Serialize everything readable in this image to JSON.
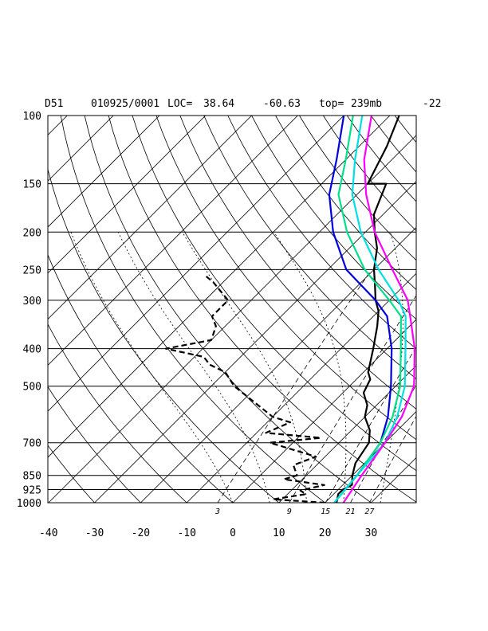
{
  "header": {
    "station": "D51",
    "datetime": "010925/0001",
    "loc_label": "LOC=",
    "lat": "38.64",
    "lon": "-60.63",
    "top_label": "top=",
    "top_value": "239mb",
    "extra": "-22"
  },
  "chart_data": {
    "type": "skew-t log-p sounding",
    "title": "D51   010925/0001 LOC= 38.64   -60.63  top= 239mb    -22",
    "pressure_ticks": [
      "100",
      "150",
      "200",
      "250",
      "300",
      "400",
      "500",
      "700",
      "850",
      "925",
      "1000"
    ],
    "pressure_levels": [
      100,
      150,
      200,
      250,
      300,
      400,
      500,
      700,
      850,
      925,
      1000
    ],
    "temperature_ticks": [
      "-40",
      "-30",
      "-20",
      "-10",
      "0",
      "10",
      "20",
      "30"
    ],
    "temperature_levels": [
      -40,
      -30,
      -20,
      -10,
      0,
      10,
      20,
      30
    ],
    "mixing_ratio_labels": [
      "3",
      "9",
      "15",
      "21",
      "27"
    ],
    "mixing_ratio_values": [
      3,
      9,
      15,
      21,
      27
    ],
    "ylim_hPa": [
      1000,
      100
    ],
    "y_scale": "log",
    "grid": true,
    "skew": "isotherms slope up to the right (about 45 degrees)",
    "series": [
      {
        "style": "solid",
        "color": "#000000",
        "points": [
          [
            22.5,
            1000
          ],
          [
            21,
            950
          ],
          [
            21,
            925
          ],
          [
            22,
            900
          ],
          [
            20,
            850
          ],
          [
            18,
            790
          ],
          [
            16.5,
            700
          ],
          [
            14,
            650
          ],
          [
            10,
            600
          ],
          [
            8,
            560
          ],
          [
            4.5,
            520
          ],
          [
            3,
            480
          ],
          [
            1,
            460
          ],
          [
            -3,
            400
          ],
          [
            -7,
            350
          ],
          [
            -10,
            320
          ],
          [
            -13,
            300
          ],
          [
            -17,
            270
          ],
          [
            -20,
            250
          ],
          [
            -24,
            220
          ],
          [
            -28,
            200
          ],
          [
            -32,
            180
          ],
          [
            -36,
            150
          ],
          [
            -40,
            150
          ],
          [
            -44,
            120
          ],
          [
            -48,
            100
          ]
        ]
      },
      {
        "style": "dashed",
        "color": "#000000",
        "points": [
          [
            20,
            1000
          ],
          [
            8,
            980
          ],
          [
            14,
            950
          ],
          [
            12,
            930
          ],
          [
            16,
            900
          ],
          [
            6,
            870
          ],
          [
            8,
            850
          ],
          [
            5,
            800
          ],
          [
            8,
            760
          ],
          [
            -5,
            700
          ],
          [
            5,
            680
          ],
          [
            -8,
            660
          ],
          [
            -5,
            620
          ],
          [
            -10,
            600
          ],
          [
            -25,
            500
          ],
          [
            -30,
            460
          ],
          [
            -35,
            440
          ],
          [
            -38,
            420
          ],
          [
            -48,
            400
          ],
          [
            -40,
            380
          ],
          [
            -42,
            350
          ],
          [
            -45,
            330
          ],
          [
            -45,
            300
          ],
          [
            -52,
            270
          ],
          [
            -55,
            260
          ]
        ]
      },
      {
        "style": "solid",
        "color": "#0000dd",
        "points": [
          [
            22,
            1000
          ],
          [
            21,
            850
          ],
          [
            19,
            700
          ],
          [
            15,
            600
          ],
          [
            9,
            500
          ],
          [
            1,
            400
          ],
          [
            -7,
            330
          ],
          [
            -13,
            300
          ],
          [
            -26,
            250
          ],
          [
            -37,
            200
          ],
          [
            -46,
            160
          ],
          [
            -52,
            130
          ],
          [
            -60,
            100
          ]
        ]
      },
      {
        "style": "solid",
        "color": "#00e08a",
        "points": [
          [
            22,
            1000
          ],
          [
            21,
            850
          ],
          [
            19,
            700
          ],
          [
            16,
            600
          ],
          [
            11,
            500
          ],
          [
            3,
            400
          ],
          [
            -4,
            330
          ],
          [
            -10,
            300
          ],
          [
            -22,
            250
          ],
          [
            -34,
            200
          ],
          [
            -44,
            160
          ],
          [
            -50,
            130
          ],
          [
            -58,
            100
          ]
        ]
      },
      {
        "style": "solid",
        "color": "#00e0e0",
        "points": [
          [
            22,
            1000
          ],
          [
            21,
            850
          ],
          [
            20,
            700
          ],
          [
            17,
            600
          ],
          [
            12,
            500
          ],
          [
            4,
            400
          ],
          [
            -3,
            330
          ],
          [
            -8,
            300
          ],
          [
            -19,
            250
          ],
          [
            -31,
            200
          ],
          [
            -41,
            160
          ],
          [
            -48,
            130
          ],
          [
            -56,
            100
          ]
        ]
      },
      {
        "style": "solid",
        "color": "#ff00ff",
        "points": [
          [
            24,
            1000
          ],
          [
            22,
            850
          ],
          [
            20,
            700
          ],
          [
            18,
            600
          ],
          [
            14,
            500
          ],
          [
            6,
            400
          ],
          [
            -2,
            330
          ],
          [
            -6,
            300
          ],
          [
            -16,
            250
          ],
          [
            -28,
            200
          ],
          [
            -38,
            160
          ],
          [
            -46,
            130
          ],
          [
            -54,
            100
          ]
        ]
      }
    ]
  }
}
